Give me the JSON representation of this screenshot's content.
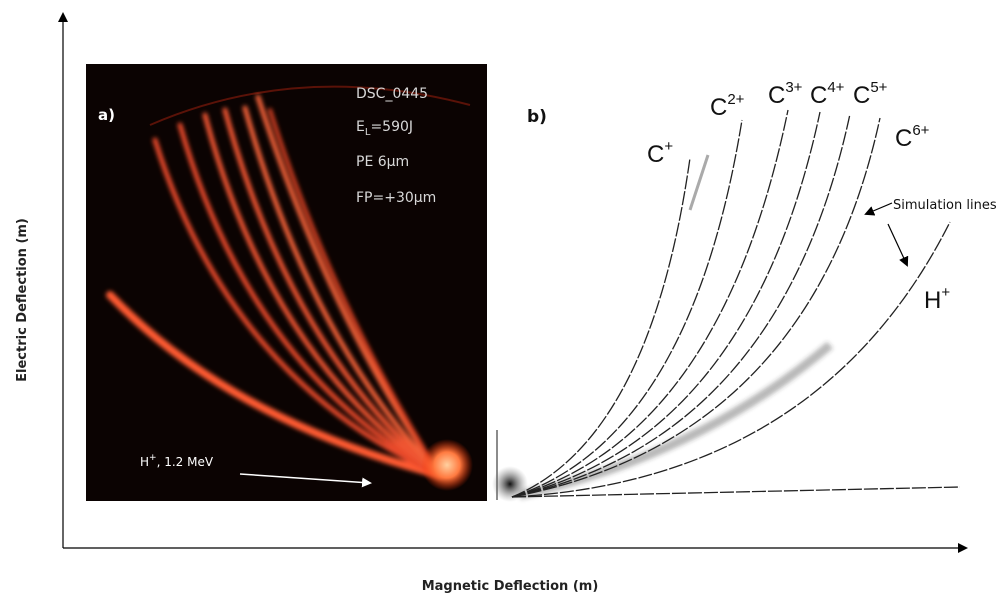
{
  "axes": {
    "y_label": "Electric Deflection (m)",
    "x_label": "Magnetic Deflection (m)"
  },
  "panel_a": {
    "label": "a)",
    "info": {
      "shot": "DSC_0445",
      "energy": {
        "base": "E",
        "sub": "L",
        "rest": "=590J"
      },
      "target": "PE 6μm",
      "focus": "FP=+30μm"
    },
    "annotation": {
      "base": "H",
      "sup": "+",
      "rest": ", 1.2 MeV"
    }
  },
  "panel_b": {
    "label": "b)",
    "ions": [
      {
        "base": "C",
        "sup": "+"
      },
      {
        "base": "C",
        "sup": "2+"
      },
      {
        "base": "C",
        "sup": "3+"
      },
      {
        "base": "C",
        "sup": "4+"
      },
      {
        "base": "C",
        "sup": "5+"
      },
      {
        "base": "C",
        "sup": "6+"
      },
      {
        "base": "H",
        "sup": "+"
      }
    ],
    "annotation": "Simulation lines"
  }
}
